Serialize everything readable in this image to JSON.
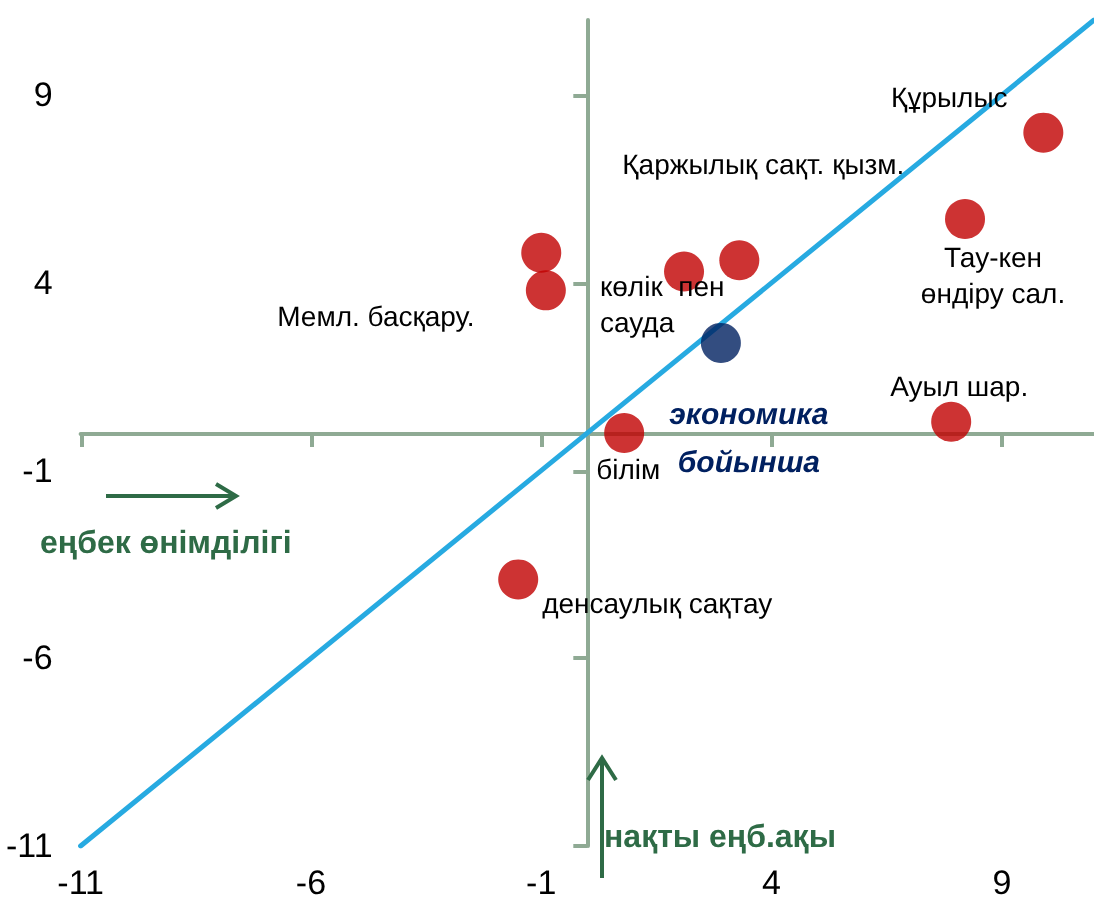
{
  "chart_data": {
    "type": "scatter",
    "xlabel": "еңбек өнімділігі",
    "ylabel": "нақты еңб.ақы",
    "xlim": [
      -11,
      11
    ],
    "ylim": [
      -11,
      11
    ],
    "xticks": [
      -11,
      -6,
      -1,
      4,
      9
    ],
    "yticks": [
      -11,
      -6,
      -1,
      4,
      9
    ],
    "grid": false,
    "marker": "circle",
    "series": [
      {
        "type": "scatter",
        "x": [
          9.9,
          8.2,
          3.3,
          2.1,
          -1.0,
          -0.9,
          7.9,
          0.8,
          -1.5,
          2.9
        ],
        "values": [
          8.0,
          5.7,
          4.6,
          4.3,
          4.8,
          3.8,
          0.3,
          0.0,
          -3.9,
          2.4
        ],
        "colors": [
          "#c00000",
          "#c00000",
          "#c00000",
          "#c00000",
          "#c00000",
          "#c00000",
          "#c00000",
          "#c00000",
          "#c00000",
          "#002060"
        ]
      },
      {
        "type": "line",
        "x": [
          -11,
          11
        ],
        "values": [
          -11,
          11
        ],
        "color": "#27aae1",
        "marker": "none",
        "line_style": "solid"
      }
    ],
    "annotations": [
      {
        "text": "Құрылыс",
        "x": 9.9,
        "y": 8.0
      },
      {
        "text": "Қаржылық сақт. қызм.",
        "x": 3.3,
        "y": 4.6
      },
      {
        "text": "Тау-кен өндіру сал.",
        "x": 8.2,
        "y": 5.7
      },
      {
        "text": "көлік  пен сауда",
        "x": 2.1,
        "y": 4.3
      },
      {
        "text": "Мемл. басқару.",
        "x": -0.9,
        "y": 3.8
      },
      {
        "text": "Ауыл шар.",
        "x": 7.9,
        "y": 0.3
      },
      {
        "text": "білім",
        "x": 0.8,
        "y": 0.0
      },
      {
        "text": "денсаулық сақтау",
        "x": -1.5,
        "y": -3.9
      },
      {
        "text": "экономика бойынша",
        "x": 2.9,
        "y": 2.4
      }
    ]
  }
}
